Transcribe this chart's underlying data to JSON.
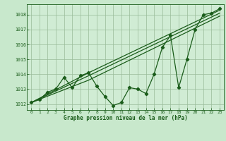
{
  "title": "Graphe pression niveau de la mer (hPa)",
  "bg_color": "#c8e8cc",
  "plot_bg_color": "#d0ecd4",
  "grid_color": "#99bb99",
  "line_color": "#1a5c1a",
  "text_color": "#1a5c1a",
  "xlim": [
    -0.5,
    23.5
  ],
  "ylim": [
    1011.6,
    1018.7
  ],
  "yticks": [
    1012,
    1013,
    1014,
    1015,
    1016,
    1017,
    1018
  ],
  "xticks": [
    0,
    1,
    2,
    3,
    4,
    5,
    6,
    7,
    8,
    9,
    10,
    11,
    12,
    13,
    14,
    15,
    16,
    17,
    18,
    19,
    20,
    21,
    22,
    23
  ],
  "series1_x": [
    0,
    1,
    2,
    3,
    4,
    5,
    6,
    7,
    8,
    9,
    10,
    11,
    12,
    13,
    14,
    15,
    16,
    17,
    18,
    19,
    20,
    21,
    22,
    23
  ],
  "series1_y": [
    1012.1,
    1012.3,
    1012.8,
    1013.0,
    1013.8,
    1013.1,
    1013.9,
    1014.1,
    1013.2,
    1012.5,
    1011.9,
    1012.1,
    1013.1,
    1013.0,
    1012.7,
    1014.0,
    1015.8,
    1016.6,
    1013.1,
    1015.0,
    1017.0,
    1018.0,
    1018.1,
    1018.4
  ],
  "series2_x": [
    0,
    7,
    23
  ],
  "series2_y": [
    1012.1,
    1014.1,
    1018.3
  ],
  "series3_x": [
    0,
    7,
    23
  ],
  "series3_y": [
    1012.1,
    1013.9,
    1018.1
  ],
  "series4_x": [
    0,
    7,
    23
  ],
  "series4_y": [
    1012.1,
    1013.6,
    1017.9
  ]
}
